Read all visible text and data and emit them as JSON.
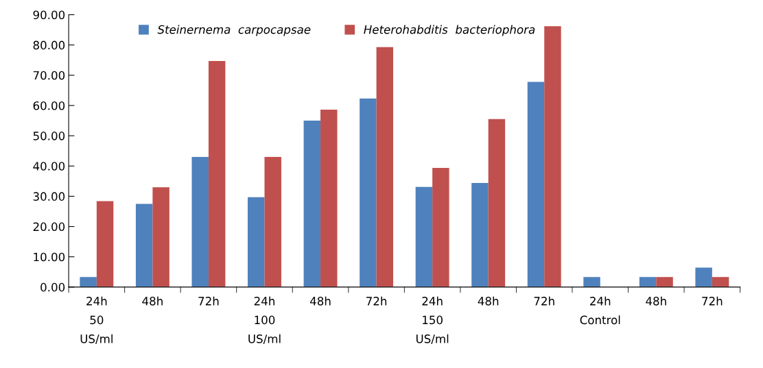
{
  "chart_data": {
    "type": "bar",
    "categories": [
      "24h\n50\nUS/ml",
      "48h",
      "72h",
      "24h\n100\nUS/ml",
      "48h",
      "72h",
      "24h\n150\nUS/ml",
      "48h",
      "72h",
      "24h\nControl",
      "48h",
      "72h"
    ],
    "series": [
      {
        "name": "Steinernema  carpocapsae",
        "color": "#4f81bd",
        "values": [
          3.3,
          27.5,
          43.0,
          29.7,
          55.0,
          62.3,
          33.1,
          34.4,
          67.8,
          3.3,
          3.3,
          6.4
        ]
      },
      {
        "name": "Heterohabditis  bacteriophora",
        "color": "#c0504d",
        "values": [
          28.4,
          33.0,
          74.7,
          43.0,
          58.6,
          79.3,
          39.4,
          55.5,
          86.2,
          0,
          3.3,
          3.3
        ]
      }
    ],
    "ylim": [
      0,
      90
    ],
    "yticks": [
      {
        "value": 0,
        "label": "0.00"
      },
      {
        "value": 10,
        "label": "10.00"
      },
      {
        "value": 20,
        "label": "20.00"
      },
      {
        "value": 30,
        "label": "30.00"
      },
      {
        "value": 40,
        "label": "40.00"
      },
      {
        "value": 50,
        "label": "50.00"
      },
      {
        "value": 60,
        "label": "60.00"
      },
      {
        "value": 70,
        "label": "70.00"
      },
      {
        "value": 80,
        "label": "80.00"
      },
      {
        "value": 90,
        "label": "90.00"
      }
    ],
    "grid": false,
    "legend": "top"
  }
}
